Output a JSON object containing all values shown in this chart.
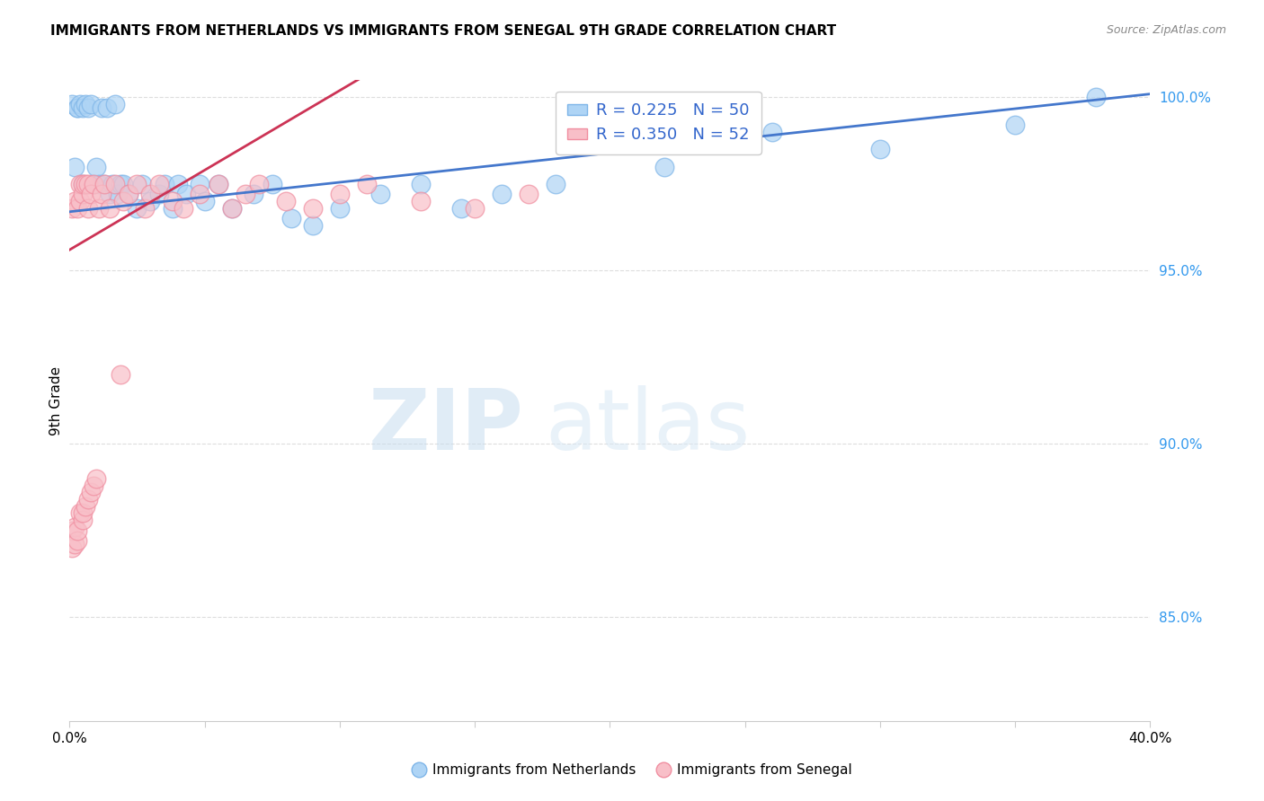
{
  "title": "IMMIGRANTS FROM NETHERLANDS VS IMMIGRANTS FROM SENEGAL 9TH GRADE CORRELATION CHART",
  "source": "Source: ZipAtlas.com",
  "ylabel": "9th Grade",
  "xlim": [
    0.0,
    0.4
  ],
  "ylim": [
    0.82,
    1.005
  ],
  "y_ticks": [
    0.85,
    0.9,
    0.95,
    1.0
  ],
  "y_tick_labels": [
    "85.0%",
    "90.0%",
    "95.0%",
    "100.0%"
  ],
  "netherlands_color": "#7EB5E8",
  "netherlands_face_color": "#AED4F5",
  "senegal_color": "#F08EA0",
  "senegal_face_color": "#F8BFC8",
  "netherlands_line_color": "#4477CC",
  "senegal_line_color": "#CC3355",
  "netherlands_R": 0.225,
  "netherlands_N": 50,
  "senegal_R": 0.35,
  "senegal_N": 52,
  "nl_line_x0": 0.0,
  "nl_line_x1": 0.4,
  "nl_line_y0": 0.967,
  "nl_line_y1": 1.001,
  "sn_line_x0": 0.0,
  "sn_line_x1": 0.1,
  "sn_line_y0": 0.956,
  "sn_line_y1": 1.002,
  "watermark_zip": "ZIP",
  "watermark_atlas": "atlas",
  "background_color": "#ffffff",
  "grid_color": "#dddddd",
  "nl_scatter_x": [
    0.001,
    0.002,
    0.003,
    0.003,
    0.004,
    0.005,
    0.005,
    0.006,
    0.007,
    0.008,
    0.009,
    0.01,
    0.011,
    0.012,
    0.013,
    0.014,
    0.015,
    0.016,
    0.017,
    0.018,
    0.019,
    0.02,
    0.022,
    0.025,
    0.027,
    0.03,
    0.033,
    0.035,
    0.038,
    0.04,
    0.043,
    0.048,
    0.05,
    0.055,
    0.06,
    0.068,
    0.075,
    0.082,
    0.09,
    0.1,
    0.115,
    0.13,
    0.145,
    0.16,
    0.18,
    0.22,
    0.26,
    0.3,
    0.35,
    0.38
  ],
  "nl_scatter_y": [
    0.998,
    0.98,
    0.997,
    0.997,
    0.998,
    0.997,
    0.975,
    0.998,
    0.997,
    0.998,
    0.975,
    0.98,
    0.975,
    0.997,
    0.975,
    0.997,
    0.972,
    0.975,
    0.998,
    0.972,
    0.975,
    0.975,
    0.972,
    0.968,
    0.975,
    0.97,
    0.972,
    0.975,
    0.968,
    0.975,
    0.972,
    0.975,
    0.97,
    0.975,
    0.968,
    0.972,
    0.975,
    0.965,
    0.963,
    0.968,
    0.972,
    0.975,
    0.968,
    0.972,
    0.975,
    0.98,
    0.99,
    0.985,
    0.992,
    1.0
  ],
  "sn_scatter_x": [
    0.001,
    0.001,
    0.001,
    0.002,
    0.002,
    0.002,
    0.003,
    0.003,
    0.003,
    0.004,
    0.004,
    0.004,
    0.005,
    0.005,
    0.005,
    0.005,
    0.006,
    0.006,
    0.007,
    0.007,
    0.007,
    0.008,
    0.008,
    0.009,
    0.009,
    0.01,
    0.011,
    0.012,
    0.013,
    0.015,
    0.017,
    0.019,
    0.02,
    0.022,
    0.025,
    0.028,
    0.03,
    0.033,
    0.038,
    0.042,
    0.048,
    0.055,
    0.06,
    0.065,
    0.07,
    0.08,
    0.09,
    0.1,
    0.11,
    0.13,
    0.15,
    0.17
  ],
  "sn_scatter_y": [
    0.87,
    0.875,
    0.968,
    0.871,
    0.876,
    0.97,
    0.872,
    0.968,
    0.875,
    0.88,
    0.97,
    0.975,
    0.878,
    0.88,
    0.972,
    0.975,
    0.882,
    0.975,
    0.884,
    0.968,
    0.975,
    0.886,
    0.972,
    0.888,
    0.975,
    0.89,
    0.968,
    0.972,
    0.975,
    0.968,
    0.975,
    0.92,
    0.97,
    0.972,
    0.975,
    0.968,
    0.972,
    0.975,
    0.97,
    0.968,
    0.972,
    0.975,
    0.968,
    0.972,
    0.975,
    0.97,
    0.968,
    0.972,
    0.975,
    0.97,
    0.968,
    0.972
  ]
}
